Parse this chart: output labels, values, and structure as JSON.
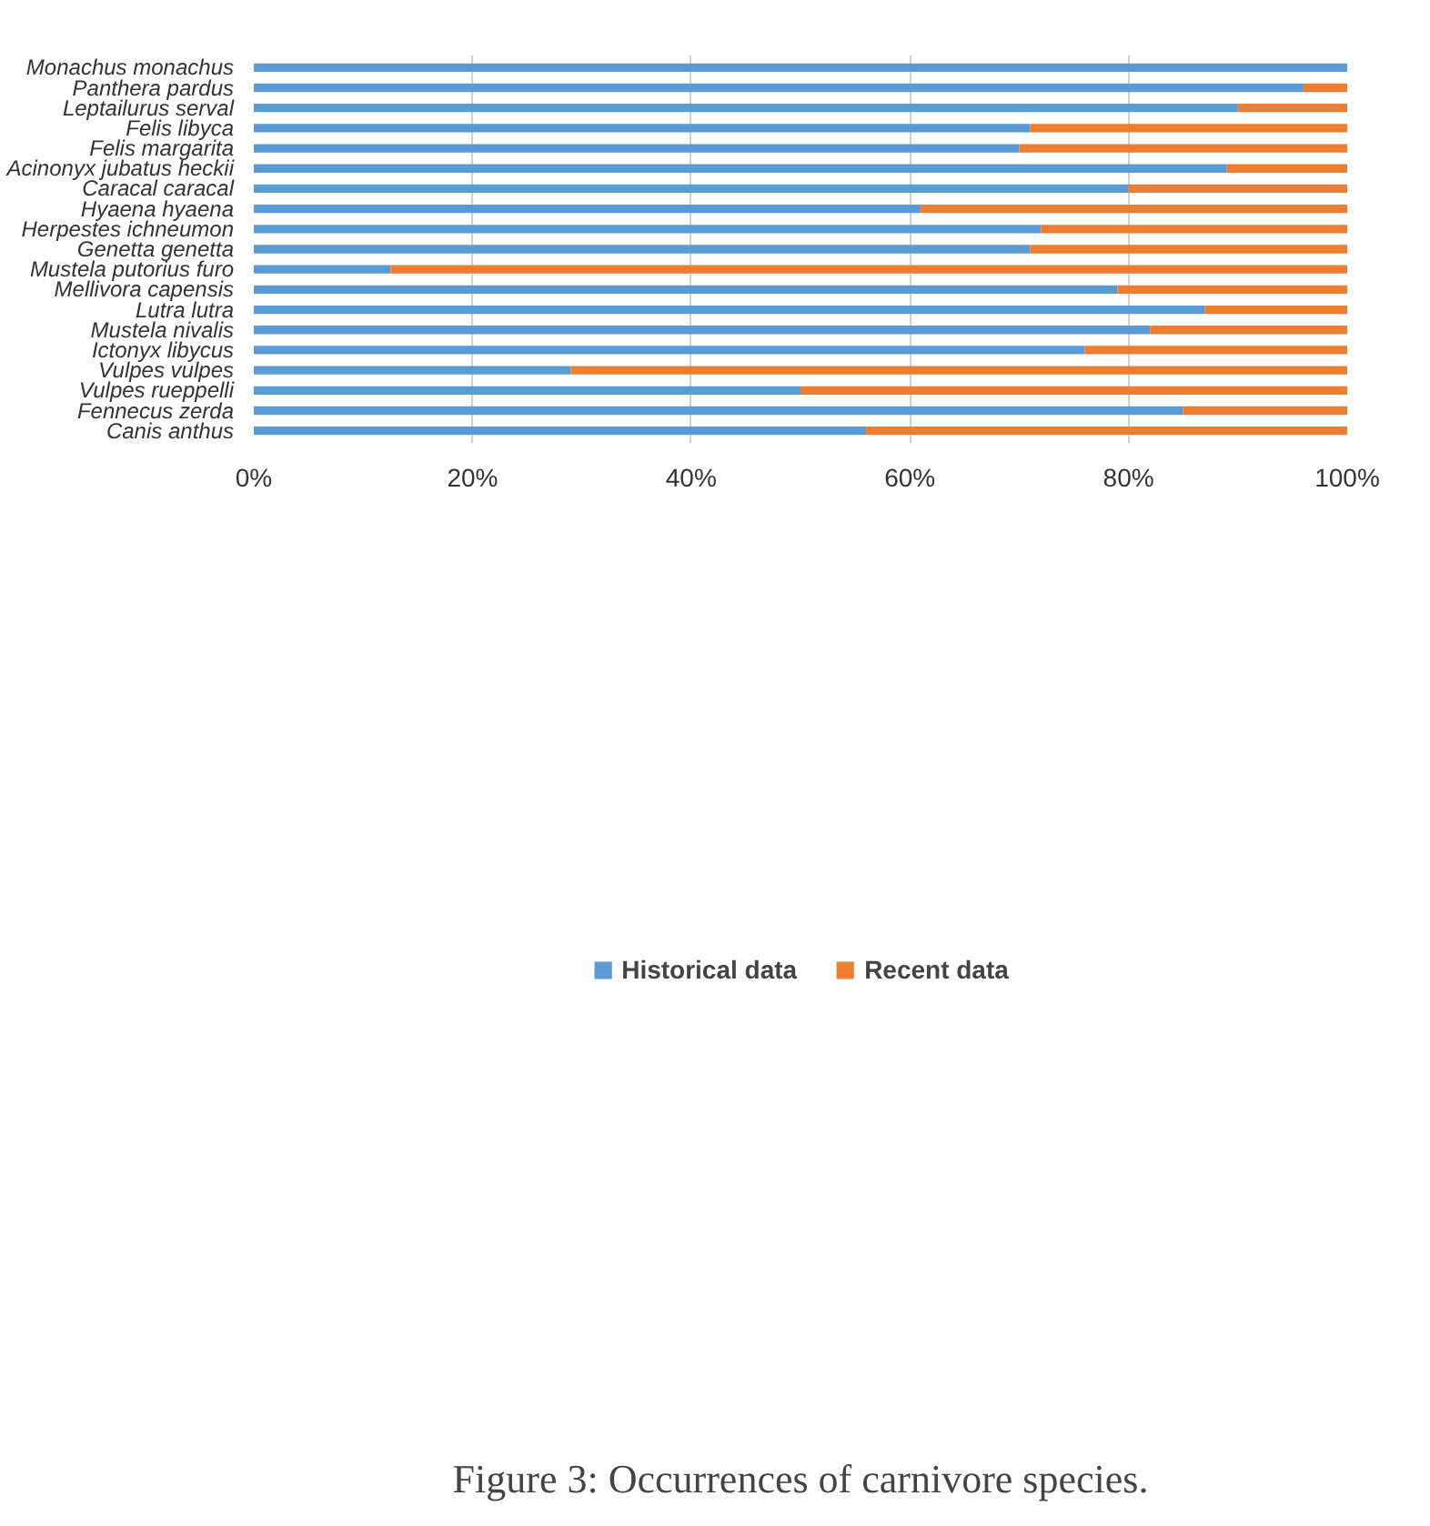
{
  "chart_data": {
    "type": "bar",
    "orientation": "horizontal",
    "stacked": true,
    "title": "Figure 3: Occurrences of carnivore species.",
    "categories": [
      "Monachus monachus",
      "Panthera pardus",
      "Leptailurus serval",
      "Felis libyca",
      "Felis margarita",
      "Acinonyx jubatus heckii",
      "Caracal caracal",
      "Hyaena hyaena",
      "Herpestes ichneumon",
      "Genetta genetta",
      "Mustela putorius furo",
      "Mellivora capensis",
      "Lutra lutra",
      "Mustela nivalis",
      "Ictonyx libycus",
      "Vulpes vulpes",
      "Vulpes rueppelli",
      "Fennecus zerda",
      "Canis anthus"
    ],
    "series": [
      {
        "name": "Historical data",
        "color": "#5b9bd5",
        "values": [
          100,
          96,
          90,
          71,
          70,
          89,
          80,
          61,
          72,
          71,
          12.5,
          79,
          87,
          82,
          76,
          29,
          50,
          85,
          56
        ]
      },
      {
        "name": "Recent data",
        "color": "#ed7d31",
        "values": [
          0,
          4,
          10,
          29,
          30,
          11,
          20,
          39,
          28,
          29,
          87.5,
          21,
          13,
          18,
          24,
          71,
          50,
          15,
          44
        ]
      }
    ],
    "xlim": [
      0,
      100
    ],
    "xticks": [
      {
        "value": 0,
        "label": "0%"
      },
      {
        "value": 20,
        "label": "20%"
      },
      {
        "value": 40,
        "label": "40%"
      },
      {
        "value": 60,
        "label": "60%"
      },
      {
        "value": 80,
        "label": "80%"
      },
      {
        "value": 100,
        "label": "100%"
      }
    ],
    "grid": "x",
    "legend": "bottom"
  }
}
